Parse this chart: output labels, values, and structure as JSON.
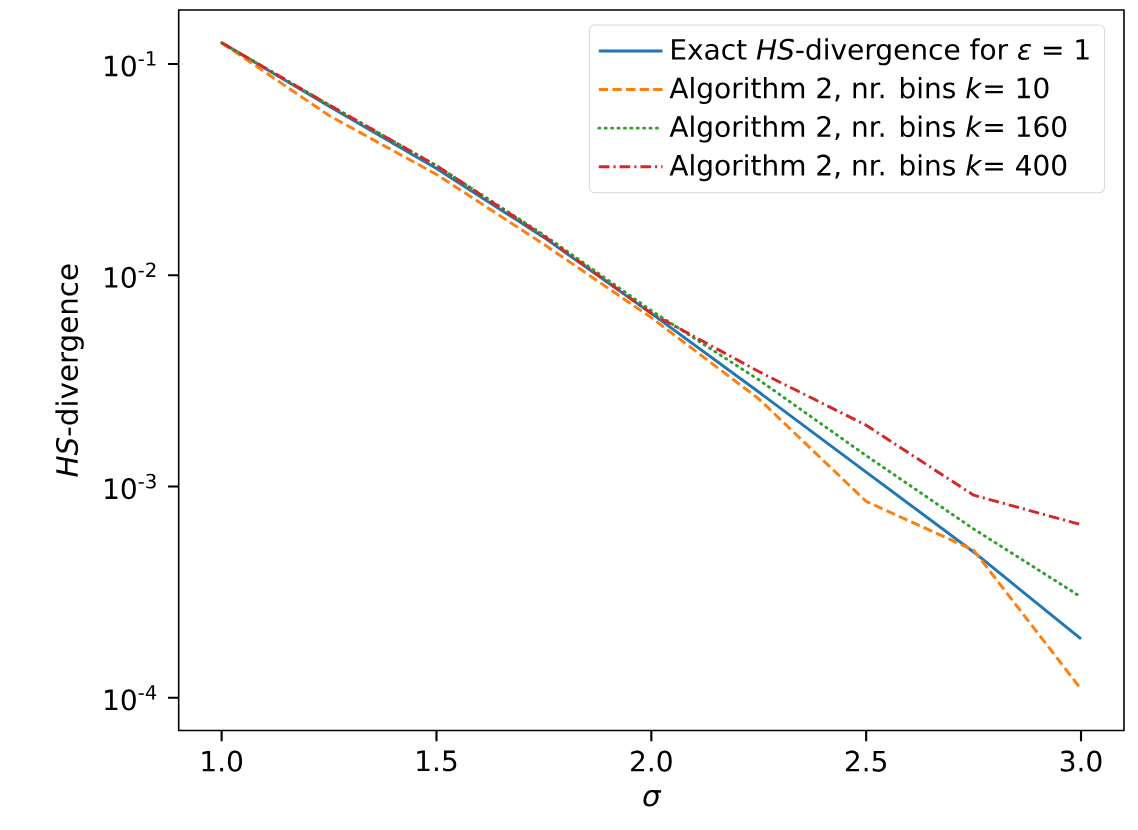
{
  "chart_data": {
    "type": "line",
    "xlabel": "σ",
    "ylabel": "*HS*-divergence",
    "x": [
      1.0,
      1.25,
      1.5,
      1.75,
      2.0,
      2.25,
      2.5,
      2.75,
      3.0
    ],
    "series": [
      {
        "name": "Exact *HS*-divergence for *ε* = 1",
        "color": "#1f77b4",
        "line_style": "solid",
        "values": [
          0.126,
          0.063,
          0.032,
          0.0151,
          0.0066,
          0.0028,
          0.00117,
          0.00049,
          0.00019
        ]
      },
      {
        "name": "Algorithm 2, nr. bins *k*= 10",
        "color": "#ff7f0e",
        "line_style": "dashed",
        "values": [
          0.126,
          0.057,
          0.03,
          0.014,
          0.0063,
          0.0026,
          0.00085,
          0.0005,
          0.00011
        ]
      },
      {
        "name": "Algorithm 2, nr. bins *k*= 160",
        "color": "#2ca02c",
        "line_style": "dotted",
        "values": [
          0.126,
          0.064,
          0.033,
          0.0155,
          0.0068,
          0.0032,
          0.0014,
          0.00063,
          0.0003
        ]
      },
      {
        "name": "Algorithm 2, nr. bins *k*= 400",
        "color": "#d62728",
        "line_style": "dashdot",
        "values": [
          0.126,
          0.064,
          0.033,
          0.0153,
          0.0066,
          0.0035,
          0.00195,
          0.00091,
          0.00066
        ]
      }
    ],
    "log": "y",
    "xlim": [
      0.9,
      3.1
    ],
    "ylim": [
      7e-05,
      0.18
    ],
    "xticks": [
      {
        "value": 1.0,
        "label": "1.0"
      },
      {
        "value": 1.5,
        "label": "1.5"
      },
      {
        "value": 2.0,
        "label": "2.0"
      },
      {
        "value": 2.5,
        "label": "2.5"
      },
      {
        "value": 3.0,
        "label": "3.0"
      }
    ],
    "yticks": [
      {
        "value": 0.0001,
        "label": "10$^{-4}$"
      },
      {
        "value": 0.001,
        "label": "10$^{-3}$"
      },
      {
        "value": 0.01,
        "label": "10$^{-2}$"
      },
      {
        "value": 0.1,
        "label": "10$^{-1}$"
      }
    ],
    "legend": "top right",
    "grid": false,
    "marker": "none"
  }
}
